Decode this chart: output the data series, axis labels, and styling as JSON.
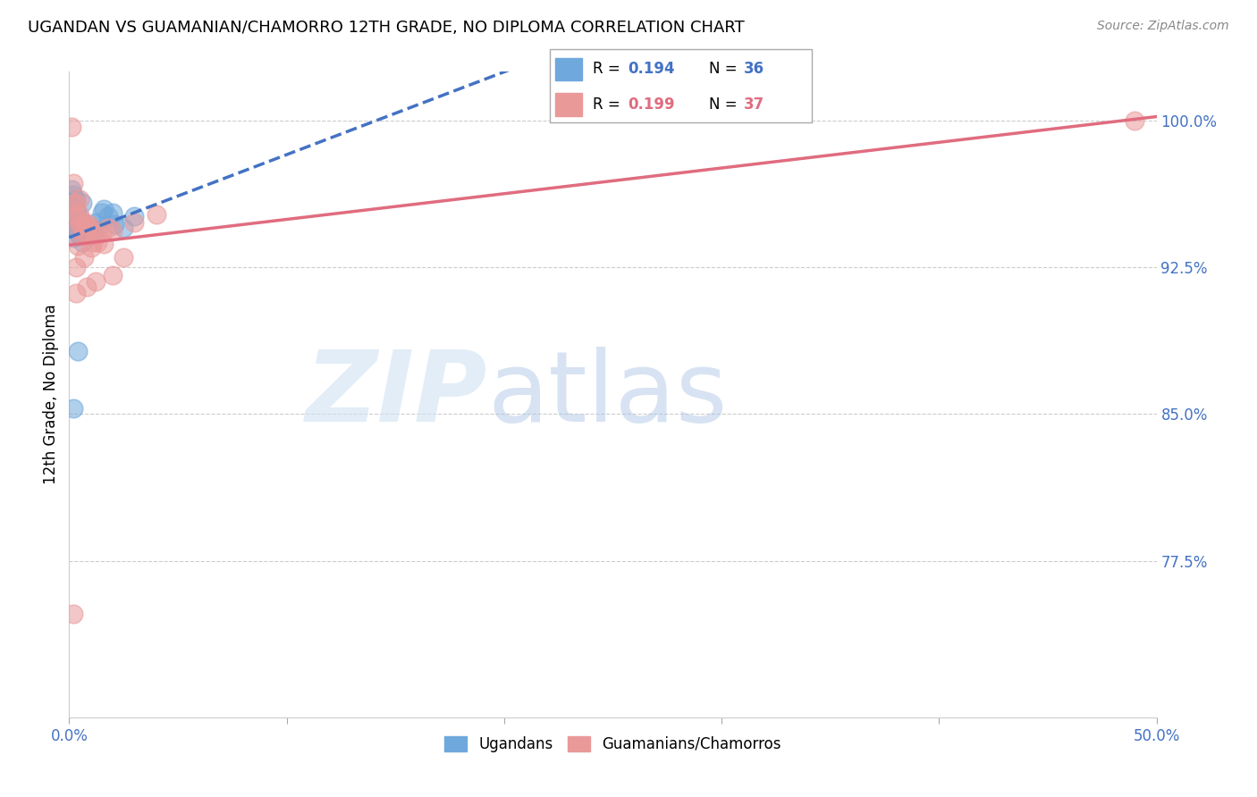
{
  "title": "UGANDAN VS GUAMANIAN/CHAMORRO 12TH GRADE, NO DIPLOMA CORRELATION CHART",
  "source": "Source: ZipAtlas.com",
  "ylabel": "12th Grade, No Diploma",
  "xlim": [
    0.0,
    0.5
  ],
  "ylim": [
    0.695,
    1.025
  ],
  "ugandan_R": 0.194,
  "ugandan_N": 36,
  "guamanian_R": 0.199,
  "guamanian_N": 37,
  "ugandan_color": "#6fa8dc",
  "ugandan_edge": "#6fa8dc",
  "guamanian_color": "#ea9999",
  "guamanian_edge": "#ea9999",
  "trend_blue": "#4472c4",
  "trend_pink": "#e06c7f",
  "ugandan_x": [
    0.001,
    0.001,
    0.002,
    0.003,
    0.003,
    0.003,
    0.004,
    0.004,
    0.005,
    0.005,
    0.005,
    0.006,
    0.006,
    0.006,
    0.007,
    0.007,
    0.008,
    0.009,
    0.01,
    0.01,
    0.011,
    0.012,
    0.013,
    0.015,
    0.016,
    0.018,
    0.02,
    0.021,
    0.025,
    0.03,
    0.002,
    0.004,
    0.003,
    0.006,
    0.002,
    0.001
  ],
  "ugandan_y": [
    0.952,
    0.958,
    0.962,
    0.955,
    0.948,
    0.944,
    0.947,
    0.943,
    0.95,
    0.945,
    0.941,
    0.946,
    0.942,
    0.938,
    0.947,
    0.943,
    0.944,
    0.942,
    0.945,
    0.941,
    0.942,
    0.948,
    0.944,
    0.953,
    0.955,
    0.951,
    0.953,
    0.947,
    0.945,
    0.951,
    0.853,
    0.882,
    0.96,
    0.958,
    0.94,
    0.965
  ],
  "guamanian_x": [
    0.001,
    0.002,
    0.002,
    0.003,
    0.003,
    0.004,
    0.004,
    0.005,
    0.005,
    0.006,
    0.006,
    0.007,
    0.008,
    0.008,
    0.009,
    0.01,
    0.011,
    0.012,
    0.013,
    0.015,
    0.016,
    0.018,
    0.02,
    0.025,
    0.03,
    0.04,
    0.003,
    0.003,
    0.004,
    0.005,
    0.008,
    0.012,
    0.02,
    0.49,
    0.002,
    0.007,
    0.01
  ],
  "guamanian_y": [
    0.997,
    0.968,
    0.958,
    0.958,
    0.952,
    0.95,
    0.945,
    0.952,
    0.947,
    0.946,
    0.941,
    0.948,
    0.946,
    0.942,
    0.947,
    0.945,
    0.938,
    0.941,
    0.938,
    0.943,
    0.937,
    0.945,
    0.944,
    0.93,
    0.948,
    0.952,
    0.925,
    0.912,
    0.936,
    0.96,
    0.915,
    0.918,
    0.921,
    1.0,
    0.748,
    0.93,
    0.935
  ],
  "xticks": [
    0.0,
    0.1,
    0.2,
    0.3,
    0.4,
    0.5
  ],
  "xtick_labels": [
    "0.0%",
    "",
    "",
    "",
    "",
    "50.0%"
  ],
  "yticks": [
    0.775,
    0.85,
    0.925,
    1.0
  ],
  "ytick_labels": [
    "77.5%",
    "85.0%",
    "92.5%",
    "100.0%"
  ],
  "legend_R1": "R = 0.194",
  "legend_N1": "N = 36",
  "legend_R2": "R = 0.199",
  "legend_N2": "N = 37",
  "bottom_label1": "Ugandans",
  "bottom_label2": "Guamanians/Chamorros"
}
